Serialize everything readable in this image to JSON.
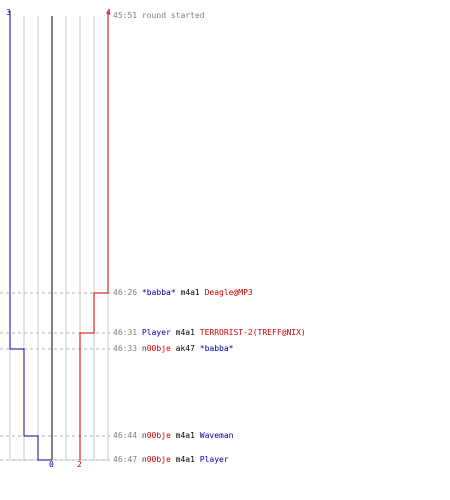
{
  "colors": {
    "ct": "#0000aa",
    "terrorist": "#cc0000",
    "grid": "#c8c8c8",
    "center": "#808080",
    "dash": "#b0b0b0",
    "time": "#808080"
  },
  "score_labels": {
    "ct_start": "3",
    "t_start": "4",
    "ct_end": "0",
    "t_end": "2"
  },
  "events": [
    {
      "time": "45:51",
      "note": "round started"
    },
    {
      "time": "46:26",
      "killer": "*babba*",
      "killer_team": "ct",
      "weapon": "m4a1",
      "victim": "Deagle@MP3",
      "victim_team": "t",
      "ct_after": 3,
      "t_after": 3
    },
    {
      "time": "46:31",
      "killer": "Player",
      "killer_team": "ct",
      "weapon": "m4a1",
      "victim": "TERRORIST-2(TREFF@NIX)",
      "victim_team": "t",
      "ct_after": 3,
      "t_after": 2
    },
    {
      "time": "46:33",
      "killer": "n00bje",
      "killer_team": "t",
      "weapon": "ak47",
      "victim": "*babba*",
      "victim_team": "ct",
      "ct_after": 2,
      "t_after": 2
    },
    {
      "time": "46:44",
      "killer": "n00bje",
      "killer_team": "t",
      "weapon": "m4a1",
      "victim": "Waveman",
      "victim_team": "ct",
      "ct_after": 1,
      "t_after": 2
    },
    {
      "time": "46:47",
      "killer": "n00bje",
      "killer_team": "t",
      "weapon": "m4a1",
      "victim": "Player",
      "victim_team": "ct",
      "ct_after": 0,
      "t_after": 2
    }
  ]
}
